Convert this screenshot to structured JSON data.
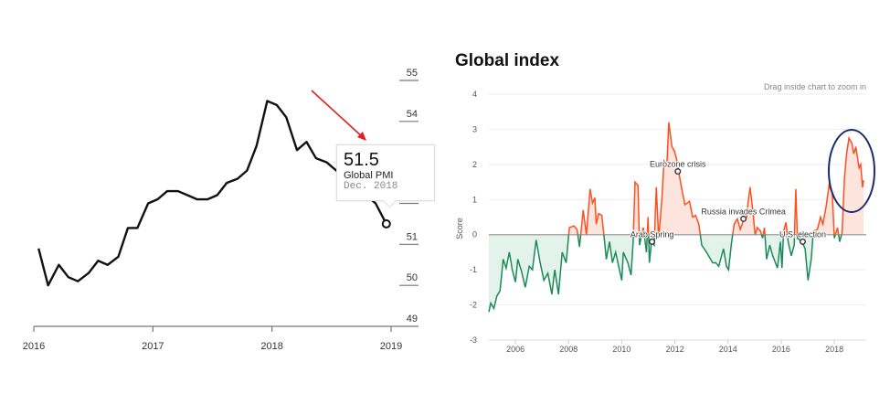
{
  "chart_data": [
    {
      "type": "line",
      "title": "",
      "series_name": "Global PMI",
      "x_ticks": [
        "2016",
        "2017",
        "2018",
        "2019"
      ],
      "y_ticks": [
        49,
        50,
        51,
        52,
        53,
        54,
        55
      ],
      "ylim": [
        49,
        55
      ],
      "xlim": [
        2016,
        2019
      ],
      "x": [
        2016.04,
        2016.12,
        2016.21,
        2016.29,
        2016.37,
        2016.46,
        2016.54,
        2016.62,
        2016.71,
        2016.79,
        2016.87,
        2016.96,
        2017.04,
        2017.12,
        2017.21,
        2017.29,
        2017.37,
        2017.46,
        2017.54,
        2017.62,
        2017.71,
        2017.79,
        2017.87,
        2017.96,
        2018.04,
        2018.12,
        2018.21,
        2018.29,
        2018.37,
        2018.46,
        2018.54,
        2018.62,
        2018.71,
        2018.79,
        2018.87,
        2018.96
      ],
      "values": [
        50.9,
        50.0,
        50.5,
        50.2,
        50.1,
        50.3,
        50.6,
        50.5,
        50.7,
        51.4,
        51.4,
        52.0,
        52.1,
        52.3,
        52.3,
        52.2,
        52.1,
        52.1,
        52.2,
        52.5,
        52.6,
        52.8,
        53.4,
        54.5,
        54.4,
        54.1,
        53.3,
        53.5,
        53.1,
        53.0,
        52.8,
        52.6,
        52.4,
        52.2,
        52.0,
        51.5
      ],
      "tooltip": {
        "value": "51.5",
        "label": "Global PMI",
        "date": "Dec. 2018"
      }
    },
    {
      "type": "area",
      "title": "Global index",
      "hint": "Drag inside chart to zoom in",
      "ylabel": "Score",
      "ylim": [
        -3,
        4
      ],
      "xlim": [
        2005,
        2019.2
      ],
      "y_ticks": [
        4,
        3,
        2,
        1,
        0,
        -1,
        -2,
        -3
      ],
      "x_ticks": [
        "2006",
        "2008",
        "2010",
        "2012",
        "2014",
        "2016",
        "2018"
      ],
      "colors": {
        "positive": "#ff4f1f",
        "negative": "#1a8a5a",
        "positive_fill": "#fde5de",
        "negative_fill": "#e3f2ea"
      },
      "x": [
        2005.0,
        2005.07,
        2005.19,
        2005.3,
        2005.42,
        2005.54,
        2005.65,
        2005.77,
        2005.88,
        2006.0,
        2006.09,
        2006.23,
        2006.37,
        2006.52,
        2006.64,
        2006.78,
        2006.93,
        2007.07,
        2007.22,
        2007.37,
        2007.48,
        2007.62,
        2007.76,
        2007.91,
        2008.03,
        2008.2,
        2008.32,
        2008.41,
        2008.55,
        2008.67,
        2008.81,
        2008.9,
        2008.99,
        2009.04,
        2009.13,
        2009.25,
        2009.34,
        2009.42,
        2009.54,
        2009.65,
        2009.77,
        2010.0,
        2010.06,
        2010.23,
        2010.35,
        2010.43,
        2010.5,
        2010.61,
        2010.67,
        2010.81,
        2010.93,
        2010.99,
        2011.04,
        2011.12,
        2011.22,
        2011.3,
        2011.39,
        2011.51,
        2011.59,
        2011.7,
        2011.77,
        2011.89,
        2011.97,
        2012.05,
        2012.14,
        2012.26,
        2012.38,
        2012.55,
        2012.67,
        2012.78,
        2012.9,
        2013.01,
        2013.19,
        2013.42,
        2013.54,
        2013.65,
        2013.83,
        2013.94,
        2014.02,
        2014.12,
        2014.23,
        2014.35,
        2014.46,
        2014.58,
        2014.7,
        2014.75,
        2014.83,
        2014.93,
        2015.02,
        2015.1,
        2015.22,
        2015.3,
        2015.37,
        2015.45,
        2015.57,
        2015.68,
        2015.86,
        2015.97,
        2016.03,
        2016.09,
        2016.18,
        2016.26,
        2016.38,
        2016.49,
        2016.55,
        2016.61,
        2016.78,
        2016.9,
        2017.01,
        2017.13,
        2017.21,
        2017.36,
        2017.48,
        2017.57,
        2017.69,
        2017.8,
        2017.92,
        2018.0,
        2018.12,
        2018.2,
        2018.29,
        2018.38,
        2018.46,
        2018.55,
        2018.66,
        2018.73,
        2018.81,
        2018.93,
        2018.99,
        2019.06,
        2019.1
      ],
      "values": [
        -2.2,
        -1.95,
        -2.1,
        -1.75,
        -1.6,
        -0.7,
        -0.95,
        -0.5,
        -1.0,
        -1.35,
        -0.7,
        -1.05,
        -1.5,
        -0.9,
        -1.0,
        -0.15,
        -0.8,
        -1.3,
        -1.1,
        -1.7,
        -1.0,
        -1.7,
        -0.5,
        -0.8,
        0.2,
        0.25,
        0.15,
        -0.35,
        0.7,
        0.0,
        1.3,
        0.9,
        1.05,
        0.3,
        0.6,
        0.55,
        -0.1,
        -0.7,
        -0.2,
        -0.8,
        -0.5,
        -1.3,
        -0.5,
        -0.8,
        -1.15,
        -0.2,
        1.5,
        1.4,
        -0.3,
        0.2,
        -0.5,
        0.5,
        -0.8,
        -0.2,
        -0.3,
        1.35,
        -0.1,
        1.0,
        2.1,
        2.0,
        3.2,
        2.5,
        2.4,
        2.2,
        1.8,
        1.3,
        0.85,
        0.95,
        0.5,
        0.55,
        0.3,
        -0.3,
        -0.5,
        -0.8,
        -0.8,
        -0.9,
        -0.4,
        -0.9,
        -1.0,
        -0.3,
        0.3,
        0.45,
        0.15,
        0.4,
        0.5,
        0.9,
        1.35,
        0.7,
        0.0,
        0.2,
        0.1,
        -0.1,
        0.2,
        -0.7,
        -0.3,
        -0.6,
        -0.95,
        -0.2,
        -0.95,
        0.1,
        0.35,
        -0.2,
        -0.6,
        -0.3,
        1.3,
        -0.1,
        -0.2,
        -0.4,
        -1.3,
        -0.7,
        0.1,
        0.15,
        0.5,
        0.3,
        0.8,
        1.4,
        1.2,
        -0.1,
        0.2,
        -0.2,
        0.05,
        1.6,
        2.3,
        2.75,
        2.6,
        2.3,
        2.5,
        1.9,
        2.0,
        1.35,
        1.55
      ],
      "annotations": [
        {
          "label": "Eurozone crisis",
          "x": 2012.11,
          "y": 1.8
        },
        {
          "label": "Arab Spring",
          "x": 2011.14,
          "y": -0.2
        },
        {
          "label": "Russia invades Crimea",
          "x": 2014.58,
          "y": 0.45
        },
        {
          "label": "U.S. election",
          "x": 2016.81,
          "y": -0.2
        }
      ]
    }
  ]
}
